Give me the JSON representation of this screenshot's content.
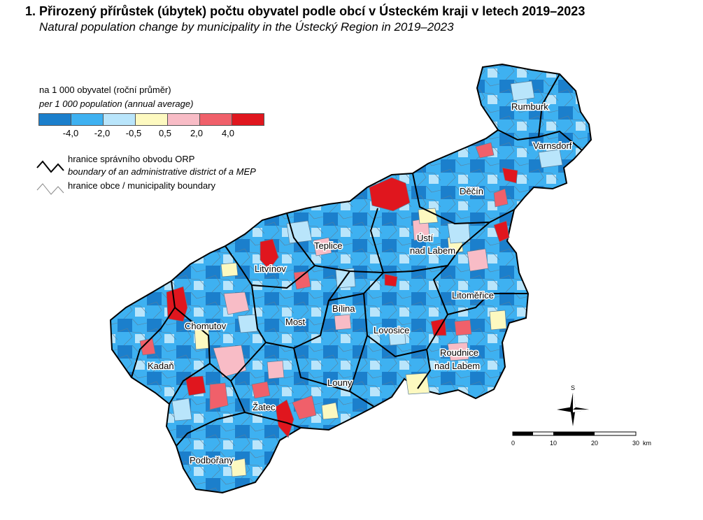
{
  "title": "1. Přirozený přírůstek (úbytek) počtu obyvatel podle obcí v Ústeckém kraji v letech 2019–2023",
  "subtitle": "Natural population change by municipality in the Ústecký Region in 2019–2023",
  "legend": {
    "title_cs": "na 1 000 obyvatel (roční průměr)",
    "title_en": "per 1 000 population (annual average)",
    "class_colors": [
      "#1b7fcc",
      "#3eb1f1",
      "#b9e5fb",
      "#fdf9c0",
      "#f8bcc6",
      "#f0606a",
      "#e0161e"
    ],
    "ticks": [
      "-4,0",
      "-2,0",
      "-0,5",
      "0,5",
      "2,0",
      "4,0"
    ],
    "orp_boundary_cs": "hranice správního obvodu ORP",
    "orp_boundary_en": "boundary of an administrative district of a MEP",
    "municipality_boundary": "hranice obce / municipality boundary"
  },
  "places": [
    "Rumburk",
    "Varnsdorf",
    "Děčín",
    "Teplice",
    "Ústí",
    "nad Labem",
    "Litvínov",
    "Bílina",
    "Most",
    "Chomutov",
    "Litoměřice",
    "Lovosice",
    "Roudnice",
    "nad Labem",
    "Kadaň",
    "Louny",
    "Žatec",
    "Podbořany"
  ],
  "compass": {
    "letter": "S"
  },
  "scale_bar": {
    "labels": [
      "0",
      "10",
      "20",
      "30"
    ],
    "unit": "km"
  }
}
